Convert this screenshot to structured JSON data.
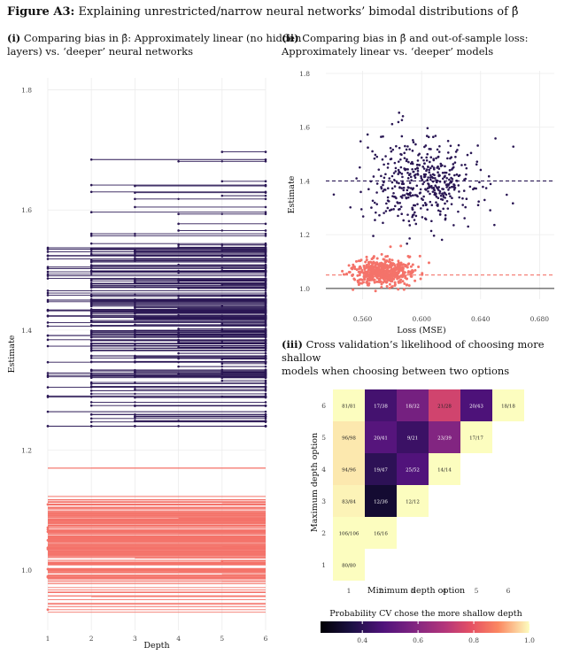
{
  "figure": {
    "title_bold": "Figure A3:",
    "title_rest": "Explaining unrestricted/narrow neural networks’ bimodal distributions of β̂"
  },
  "panel_i": {
    "title_bold": "(i)",
    "title_line1": "Comparing bias in β̂: Approximately linear (no hidden",
    "title_line2": "layers) vs. ‘deeper’ neural networks",
    "xlabel": "Depth",
    "ylabel": "Estimate",
    "x_ticks": [
      "1",
      "2",
      "3",
      "4",
      "5",
      "6"
    ],
    "y_ticks": [
      "1.0",
      "1.2",
      "1.4",
      "1.6",
      "1.8"
    ]
  },
  "panel_ii": {
    "title_bold": "(ii)",
    "title_line1": "Comparing bias in β̂ and out-of-sample loss:",
    "title_line2": "Approximately linear vs. ‘deeper’ models",
    "xlabel": "Loss (MSE)",
    "ylabel": "Estimate",
    "x_ticks": [
      "0.560",
      "0.600",
      "0.640",
      "0.680"
    ],
    "y_ticks": [
      "1.0",
      "1.2",
      "1.4",
      "1.6",
      "1.8"
    ]
  },
  "panel_iii": {
    "title_bold": "(iii)",
    "title_line1": "Cross validation’s likelihood of choosing more shallow",
    "title_line2": "models when choosing between two options",
    "xlabel": "Minimum depth option",
    "ylabel": "Maximum depth option",
    "x_ticks": [
      "1",
      "2",
      "3",
      "4",
      "5",
      "6"
    ],
    "y_ticks": [
      "1",
      "2",
      "3",
      "4",
      "5",
      "6"
    ],
    "legend_title": "Probability CV chose the more shallow depth",
    "legend_ticks": [
      "0.4",
      "0.6",
      "0.8",
      "1.0"
    ]
  },
  "colors": {
    "deep": "#2a1754",
    "linear": "#f4736a",
    "ref_line": "#333333"
  },
  "chart_data": [
    {
      "type": "line",
      "panel": "i",
      "xlim": [
        1,
        6
      ],
      "ylim": [
        0.9,
        1.82
      ],
      "series": [
        {
          "color": "#2a1754",
          "estimate_range": [
            1.24,
            1.78
          ],
          "x_start_range": [
            1,
            6
          ],
          "x_end": 6
        },
        {
          "color": "#f4736a",
          "estimate_range": [
            0.93,
            1.17
          ],
          "x_start_range": [
            1,
            6
          ],
          "x_end": 6
        }
      ]
    },
    {
      "type": "scatter",
      "panel": "ii",
      "xlim": [
        0.535,
        0.69
      ],
      "ylim": [
        0.96,
        1.81
      ],
      "reference_line": 1.0,
      "series": [
        {
          "color": "#2a1754",
          "loss_center": 0.6,
          "loss_sd": 0.02,
          "estimate_center": 1.4,
          "estimate_sd": 0.08,
          "mean_line": 1.4
        },
        {
          "color": "#f4736a",
          "loss_center": 0.574,
          "loss_sd": 0.01,
          "estimate_center": 1.06,
          "estimate_sd": 0.025,
          "mean_line": 1.05
        }
      ]
    },
    {
      "type": "heatmap",
      "panel": "iii",
      "x_categories": [
        1,
        2,
        3,
        4,
        5,
        6
      ],
      "y_categories": [
        1,
        2,
        3,
        4,
        5,
        6
      ],
      "color_range": [
        0.4,
        1.0
      ],
      "cells": [
        {
          "x": 1,
          "y": 1,
          "label": "80/80",
          "value": 1.0
        },
        {
          "x": 1,
          "y": 2,
          "label": "106/106",
          "value": 1.0
        },
        {
          "x": 2,
          "y": 2,
          "label": "16/16",
          "value": 1.0
        },
        {
          "x": 1,
          "y": 3,
          "label": "83/84",
          "value": 0.99
        },
        {
          "x": 2,
          "y": 3,
          "label": "12/36",
          "value": 0.33
        },
        {
          "x": 3,
          "y": 3,
          "label": "12/12",
          "value": 1.0
        },
        {
          "x": 1,
          "y": 4,
          "label": "94/96",
          "value": 0.98
        },
        {
          "x": 2,
          "y": 4,
          "label": "19/47",
          "value": 0.4
        },
        {
          "x": 3,
          "y": 4,
          "label": "25/52",
          "value": 0.48
        },
        {
          "x": 4,
          "y": 4,
          "label": "14/14",
          "value": 1.0
        },
        {
          "x": 1,
          "y": 5,
          "label": "96/98",
          "value": 0.98
        },
        {
          "x": 2,
          "y": 5,
          "label": "20/41",
          "value": 0.49
        },
        {
          "x": 3,
          "y": 5,
          "label": "9/21",
          "value": 0.43
        },
        {
          "x": 4,
          "y": 5,
          "label": "23/39",
          "value": 0.59
        },
        {
          "x": 5,
          "y": 5,
          "label": "17/17",
          "value": 1.0
        },
        {
          "x": 1,
          "y": 6,
          "label": "81/81",
          "value": 1.0
        },
        {
          "x": 2,
          "y": 6,
          "label": "17/38",
          "value": 0.45
        },
        {
          "x": 3,
          "y": 6,
          "label": "18/32",
          "value": 0.56
        },
        {
          "x": 4,
          "y": 6,
          "label": "21/28",
          "value": 0.75
        },
        {
          "x": 5,
          "y": 6,
          "label": "20/43",
          "value": 0.47
        },
        {
          "x": 6,
          "y": 6,
          "label": "18/18",
          "value": 1.0
        }
      ]
    }
  ]
}
